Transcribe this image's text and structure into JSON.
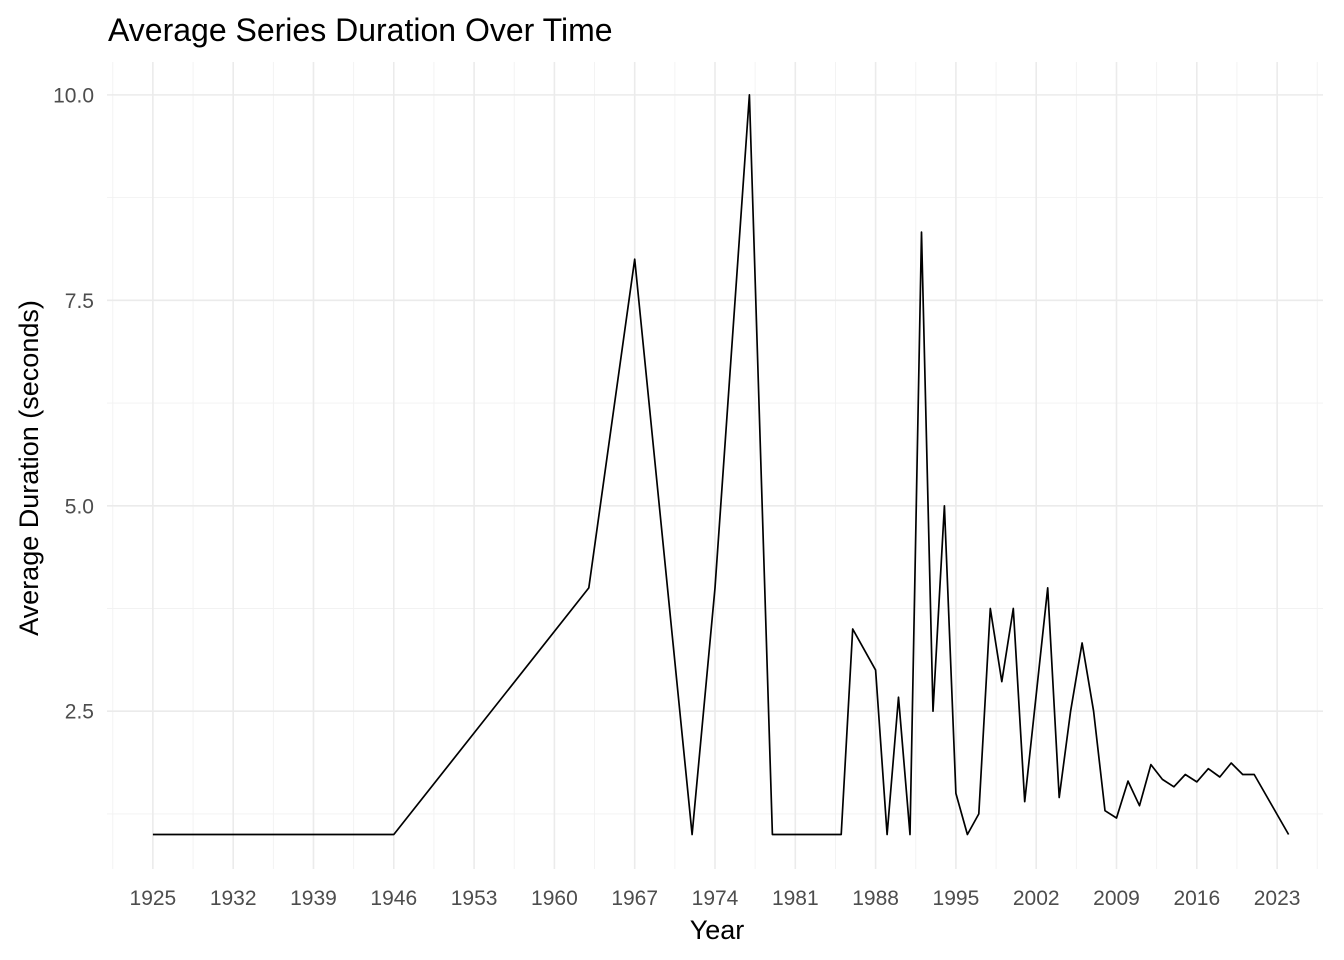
{
  "chart_data": {
    "type": "line",
    "title": "Average Series Duration Over Time",
    "xlabel": "Year",
    "ylabel": "Average Duration (seconds)",
    "xlim": [
      1921,
      2027
    ],
    "ylim": [
      0.58,
      10.4
    ],
    "x_ticks": [
      1925,
      1932,
      1939,
      1946,
      1953,
      1960,
      1967,
      1974,
      1981,
      1988,
      1995,
      2002,
      2009,
      2016,
      2023
    ],
    "x_tick_labels": [
      "1925",
      "1932",
      "1939",
      "1946",
      "1953",
      "1960",
      "1967",
      "1974",
      "1981",
      "1988",
      "1995",
      "2002",
      "2009",
      "2016",
      "2023"
    ],
    "y_ticks": [
      2.5,
      5.0,
      7.5,
      10.0
    ],
    "y_tick_labels": [
      "2.5",
      "5.0",
      "7.5",
      "10.0"
    ],
    "grid": true,
    "legend": "none",
    "series": [
      {
        "color": "#000000",
        "x": [
          1925,
          1946,
          1963,
          1967,
          1972,
          1974,
          1977,
          1979,
          1985,
          1986,
          1988,
          1989,
          1990,
          1991,
          1992,
          1993,
          1994,
          1995,
          1996,
          1997,
          1998,
          1999,
          2000,
          2001,
          2003,
          2004,
          2005,
          2006,
          2007,
          2008,
          2009,
          2010,
          2011,
          2012,
          2013,
          2014,
          2015,
          2016,
          2017,
          2018,
          2019,
          2020,
          2021,
          2024
        ],
        "y": [
          1.0,
          1.0,
          4.0,
          8.0,
          1.0,
          4.0,
          10.0,
          1.0,
          1.0,
          3.5,
          3.0,
          1.0,
          2.67,
          1.0,
          8.33,
          2.5,
          5.0,
          1.5,
          1.0,
          1.25,
          3.75,
          2.86,
          3.75,
          1.4,
          4.0,
          1.45,
          2.5,
          3.33,
          2.5,
          1.29,
          1.2,
          1.65,
          1.35,
          1.85,
          1.67,
          1.58,
          1.73,
          1.64,
          1.8,
          1.7,
          1.87,
          1.73,
          1.73,
          1.0
        ]
      }
    ]
  }
}
